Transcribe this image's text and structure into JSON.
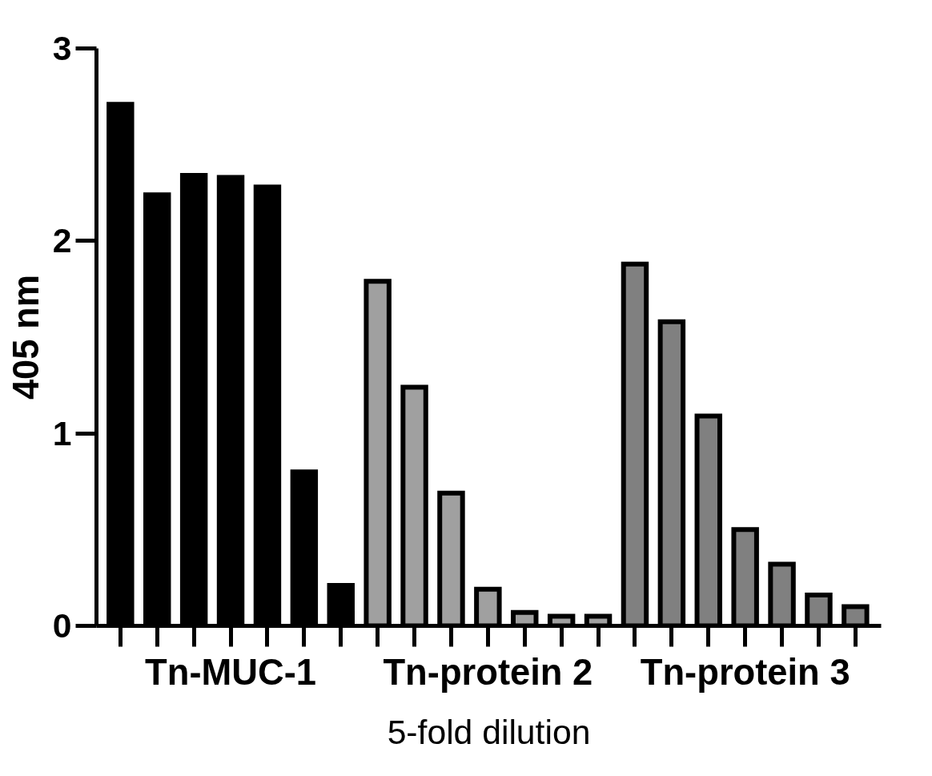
{
  "chart_data": {
    "type": "bar",
    "xlabel": "5-fold dilution",
    "ylabel": "405 nm",
    "categories": [
      null,
      null,
      null,
      "Tn-MUC-1",
      null,
      null,
      null,
      null,
      null,
      null,
      "Tn-protein 2",
      null,
      null,
      null,
      null,
      null,
      null,
      "Tn-protein 3",
      null,
      null,
      null
    ],
    "values": [
      2.71,
      2.24,
      2.34,
      2.33,
      2.28,
      0.8,
      0.21,
      1.79,
      1.24,
      0.69,
      0.19,
      0.07,
      0.05,
      0.05,
      1.88,
      1.58,
      1.09,
      0.5,
      0.32,
      0.16,
      0.1
    ],
    "colors": [
      "#000000",
      "#000000",
      "#000000",
      "#000000",
      "#000000",
      "#000000",
      "#000000",
      "#a0a0a0",
      "#a0a0a0",
      "#a0a0a0",
      "#a0a0a0",
      "#a0a0a0",
      "#a0a0a0",
      "#a0a0a0",
      "#808080",
      "#808080",
      "#808080",
      "#808080",
      "#808080",
      "#808080",
      "#808080"
    ],
    "ylim": [
      0,
      3
    ],
    "yticks": [
      0,
      1,
      2,
      3
    ],
    "grid": false
  }
}
